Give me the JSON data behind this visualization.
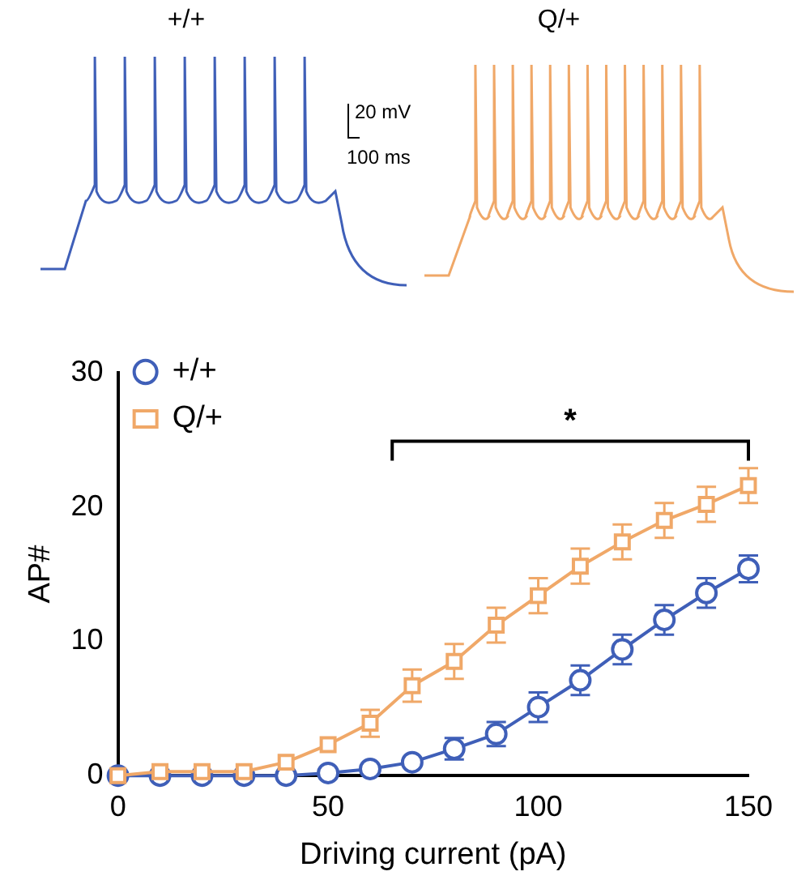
{
  "chart_data": {
    "type": "line",
    "xlabel": "Driving current (pA)",
    "ylabel": "AP#",
    "x": [
      0,
      10,
      20,
      30,
      40,
      50,
      60,
      70,
      80,
      90,
      100,
      110,
      120,
      130,
      140,
      150
    ],
    "series": [
      {
        "name": "+/+",
        "color": "#3f5fb8",
        "marker": "circle",
        "values": [
          0,
          0,
          0,
          0,
          0,
          0.2,
          0.5,
          1,
          2,
          3.1,
          5.1,
          7.1,
          9.4,
          11.6,
          13.6,
          15.4
        ],
        "errors": [
          null,
          null,
          null,
          null,
          null,
          null,
          null,
          null,
          0.8,
          0.9,
          1.1,
          1.1,
          1.1,
          1.1,
          1.1,
          1.0
        ]
      },
      {
        "name": "Q/+",
        "color": "#f0a868",
        "marker": "square",
        "values": [
          0,
          0.3,
          0.3,
          0.3,
          1,
          2.3,
          3.9,
          6.7,
          8.5,
          11.2,
          13.4,
          15.6,
          17.4,
          19,
          20.2,
          21.6
        ],
        "errors": [
          null,
          null,
          null,
          null,
          null,
          null,
          1.0,
          1.2,
          1.3,
          1.3,
          1.3,
          1.3,
          1.3,
          1.3,
          1.3,
          1.3
        ]
      }
    ],
    "xlim": [
      0,
      150
    ],
    "xticks": [
      0,
      50,
      100,
      150
    ],
    "ylim": [
      0,
      30
    ],
    "yticks": [
      0,
      10,
      20,
      30
    ],
    "grid": false,
    "legend": "top left",
    "annotations": [
      "+/+",
      "Q/+",
      "20 mV",
      "100 ms",
      "*"
    ]
  }
}
